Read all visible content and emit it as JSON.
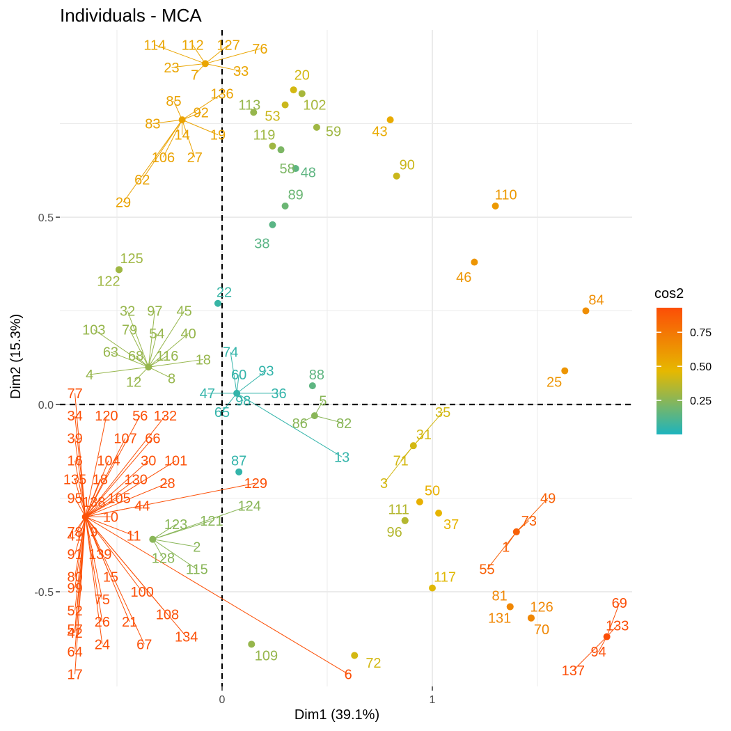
{
  "chart_data": {
    "type": "scatter",
    "title": "Individuals - MCA",
    "xlabel": "Dim1 (39.1%)",
    "ylabel": "Dim2 (15.3%)",
    "xlim": [
      -0.77,
      1.95
    ],
    "ylim": [
      -0.75,
      1.0
    ],
    "x_ticks": [
      0,
      1
    ],
    "x_tick_labels": [
      "0",
      "1"
    ],
    "y_ticks": [
      -0.5,
      0.0,
      0.5
    ],
    "y_tick_labels": [
      "-0.5",
      "0.0",
      "0.5"
    ],
    "grid": true,
    "reference_lines": {
      "x": 0,
      "y": 0,
      "style": "dashed"
    },
    "legend": {
      "title": "cos2",
      "position": "right",
      "range": [
        0.0,
        0.93
      ],
      "ticks": [
        0.25,
        0.5,
        0.75
      ],
      "tick_labels": [
        "0.25",
        "0.50",
        "0.75"
      ],
      "colors": [
        "#1DB4BE",
        "#E6B800",
        "#FC4E07"
      ]
    },
    "clusters": [
      {
        "x": -0.08,
        "y": 0.91,
        "cos2": 0.55,
        "labels": [
          {
            "t": "114",
            "lx": -0.32,
            "ly": 0.96
          },
          {
            "t": "112",
            "lx": -0.14,
            "ly": 0.96
          },
          {
            "t": "127",
            "lx": 0.03,
            "ly": 0.96
          },
          {
            "t": "76",
            "lx": 0.18,
            "ly": 0.95
          },
          {
            "t": "23",
            "lx": -0.24,
            "ly": 0.9
          },
          {
            "t": "7",
            "lx": -0.13,
            "ly": 0.88
          },
          {
            "t": "33",
            "lx": 0.09,
            "ly": 0.89
          }
        ]
      },
      {
        "x": -0.19,
        "y": 0.76,
        "cos2": 0.56,
        "labels": [
          {
            "t": "85",
            "lx": -0.23,
            "ly": 0.81
          },
          {
            "t": "136",
            "lx": 0.0,
            "ly": 0.83
          },
          {
            "t": "92",
            "lx": -0.1,
            "ly": 0.78
          },
          {
            "t": "83",
            "lx": -0.33,
            "ly": 0.75
          },
          {
            "t": "14",
            "lx": -0.19,
            "ly": 0.72
          },
          {
            "t": "19",
            "lx": -0.02,
            "ly": 0.72
          },
          {
            "t": "106",
            "lx": -0.28,
            "ly": 0.66
          },
          {
            "t": "27",
            "lx": -0.13,
            "ly": 0.66
          },
          {
            "t": "62",
            "lx": -0.38,
            "ly": 0.6
          },
          {
            "t": "29",
            "lx": -0.47,
            "ly": 0.54
          }
        ]
      },
      {
        "x": -0.35,
        "y": 0.1,
        "cos2": 0.28,
        "labels": [
          {
            "t": "32",
            "lx": -0.45,
            "ly": 0.25
          },
          {
            "t": "97",
            "lx": -0.32,
            "ly": 0.25
          },
          {
            "t": "45",
            "lx": -0.18,
            "ly": 0.25
          },
          {
            "t": "103",
            "lx": -0.61,
            "ly": 0.2
          },
          {
            "t": "79",
            "lx": -0.44,
            "ly": 0.2
          },
          {
            "t": "54",
            "lx": -0.31,
            "ly": 0.19
          },
          {
            "t": "40",
            "lx": -0.16,
            "ly": 0.19
          },
          {
            "t": "63",
            "lx": -0.53,
            "ly": 0.14
          },
          {
            "t": "68",
            "lx": -0.41,
            "ly": 0.13
          },
          {
            "t": "116",
            "lx": -0.26,
            "ly": 0.13
          },
          {
            "t": "18",
            "lx": -0.09,
            "ly": 0.12
          },
          {
            "t": "4",
            "lx": -0.63,
            "ly": 0.08
          },
          {
            "t": "12",
            "lx": -0.42,
            "ly": 0.06
          },
          {
            "t": "8",
            "lx": -0.24,
            "ly": 0.07
          }
        ]
      },
      {
        "x": 0.07,
        "y": 0.03,
        "cos2": 0.05,
        "labels": [
          {
            "t": "74",
            "lx": 0.04,
            "ly": 0.14
          },
          {
            "t": "93",
            "lx": 0.21,
            "ly": 0.09
          },
          {
            "t": "60",
            "lx": 0.08,
            "ly": 0.08
          },
          {
            "t": "47",
            "lx": -0.07,
            "ly": 0.03
          },
          {
            "t": "36",
            "lx": 0.27,
            "ly": 0.03
          },
          {
            "t": "98",
            "lx": 0.1,
            "ly": 0.01
          },
          {
            "t": "65",
            "lx": 0.0,
            "ly": -0.02
          },
          {
            "t": "13",
            "lx": 0.57,
            "ly": -0.14
          }
        ]
      },
      {
        "x": 0.44,
        "y": -0.03,
        "cos2": 0.25,
        "labels": [
          {
            "t": "5",
            "lx": 0.48,
            "ly": 0.01
          },
          {
            "t": "86",
            "lx": 0.37,
            "ly": -0.05
          },
          {
            "t": "82",
            "lx": 0.58,
            "ly": -0.05
          }
        ]
      },
      {
        "x": 0.91,
        "y": -0.11,
        "cos2": 0.42,
        "labels": [
          {
            "t": "35",
            "lx": 1.05,
            "ly": -0.02
          },
          {
            "t": "31",
            "lx": 0.96,
            "ly": -0.08
          },
          {
            "t": "71",
            "lx": 0.85,
            "ly": -0.15
          },
          {
            "t": "3",
            "lx": 0.77,
            "ly": -0.21
          }
        ]
      },
      {
        "x": -0.33,
        "y": -0.36,
        "cos2": 0.25,
        "labels": [
          {
            "t": "123",
            "lx": -0.22,
            "ly": -0.32
          },
          {
            "t": "121",
            "lx": -0.05,
            "ly": -0.31
          },
          {
            "t": "124",
            "lx": 0.13,
            "ly": -0.27
          },
          {
            "t": "2",
            "lx": -0.12,
            "ly": -0.38
          },
          {
            "t": "128",
            "lx": -0.28,
            "ly": -0.41
          },
          {
            "t": "115",
            "lx": -0.12,
            "ly": -0.44
          }
        ]
      },
      {
        "x": 1.4,
        "y": -0.34,
        "cos2": 0.85,
        "labels": [
          {
            "t": "49",
            "lx": 1.55,
            "ly": -0.25
          },
          {
            "t": "73",
            "lx": 1.46,
            "ly": -0.31
          },
          {
            "t": "1",
            "lx": 1.35,
            "ly": -0.38
          },
          {
            "t": "55",
            "lx": 1.26,
            "ly": -0.44
          }
        ]
      },
      {
        "x": 1.83,
        "y": -0.62,
        "cos2": 0.93,
        "labels": [
          {
            "t": "69",
            "lx": 1.89,
            "ly": -0.53
          },
          {
            "t": "133",
            "lx": 1.88,
            "ly": -0.59
          },
          {
            "t": "94",
            "lx": 1.79,
            "ly": -0.66
          },
          {
            "t": "137",
            "lx": 1.67,
            "ly": -0.71
          }
        ]
      },
      {
        "x": -0.65,
        "y": -0.3,
        "cos2": 0.92,
        "labels": [
          {
            "t": "77",
            "lx": -0.7,
            "ly": 0.03
          },
          {
            "t": "34",
            "lx": -0.7,
            "ly": -0.03
          },
          {
            "t": "120",
            "lx": -0.55,
            "ly": -0.03
          },
          {
            "t": "56",
            "lx": -0.39,
            "ly": -0.03
          },
          {
            "t": "132",
            "lx": -0.27,
            "ly": -0.03
          },
          {
            "t": "39",
            "lx": -0.7,
            "ly": -0.09
          },
          {
            "t": "107",
            "lx": -0.46,
            "ly": -0.09
          },
          {
            "t": "66",
            "lx": -0.33,
            "ly": -0.09
          },
          {
            "t": "16",
            "lx": -0.7,
            "ly": -0.15
          },
          {
            "t": "104",
            "lx": -0.54,
            "ly": -0.15
          },
          {
            "t": "30",
            "lx": -0.35,
            "ly": -0.15
          },
          {
            "t": "101",
            "lx": -0.22,
            "ly": -0.15
          },
          {
            "t": "135",
            "lx": -0.7,
            "ly": -0.2
          },
          {
            "t": "18",
            "lx": -0.58,
            "ly": -0.2
          },
          {
            "t": "130",
            "lx": -0.41,
            "ly": -0.2
          },
          {
            "t": "28",
            "lx": -0.26,
            "ly": -0.21
          },
          {
            "t": "95",
            "lx": -0.7,
            "ly": -0.25
          },
          {
            "t": "138",
            "lx": -0.61,
            "ly": -0.26
          },
          {
            "t": "105",
            "lx": -0.49,
            "ly": -0.25
          },
          {
            "t": "44",
            "lx": -0.38,
            "ly": -0.27
          },
          {
            "t": "10",
            "lx": -0.53,
            "ly": -0.3
          },
          {
            "t": "78",
            "lx": -0.7,
            "ly": -0.34
          },
          {
            "t": "9",
            "lx": -0.61,
            "ly": -0.34
          },
          {
            "t": "11",
            "lx": -0.42,
            "ly": -0.35
          },
          {
            "t": "41",
            "lx": -0.7,
            "ly": -0.35
          },
          {
            "t": "91",
            "lx": -0.7,
            "ly": -0.4
          },
          {
            "t": "139",
            "lx": -0.58,
            "ly": -0.4
          },
          {
            "t": "80",
            "lx": -0.7,
            "ly": -0.46
          },
          {
            "t": "15",
            "lx": -0.53,
            "ly": -0.46
          },
          {
            "t": "99",
            "lx": -0.7,
            "ly": -0.49
          },
          {
            "t": "100",
            "lx": -0.38,
            "ly": -0.5
          },
          {
            "t": "75",
            "lx": -0.57,
            "ly": -0.52
          },
          {
            "t": "52",
            "lx": -0.7,
            "ly": -0.55
          },
          {
            "t": "108",
            "lx": -0.26,
            "ly": -0.56
          },
          {
            "t": "26",
            "lx": -0.57,
            "ly": -0.58
          },
          {
            "t": "21",
            "lx": -0.44,
            "ly": -0.58
          },
          {
            "t": "57",
            "lx": -0.7,
            "ly": -0.6
          },
          {
            "t": "42",
            "lx": -0.7,
            "ly": -0.61
          },
          {
            "t": "134",
            "lx": -0.17,
            "ly": -0.62
          },
          {
            "t": "24",
            "lx": -0.57,
            "ly": -0.64
          },
          {
            "t": "67",
            "lx": -0.37,
            "ly": -0.64
          },
          {
            "t": "64",
            "lx": -0.7,
            "ly": -0.66
          },
          {
            "t": "17",
            "lx": -0.7,
            "ly": -0.72
          },
          {
            "t": "129",
            "lx": 0.16,
            "ly": -0.21
          },
          {
            "t": "6",
            "lx": 0.6,
            "ly": -0.72
          }
        ]
      }
    ],
    "points": [
      {
        "label": "20",
        "x": 0.34,
        "y": 0.84,
        "cos2": 0.42
      },
      {
        "label": "102",
        "x": 0.38,
        "y": 0.83,
        "cos2": 0.32
      },
      {
        "label": "53",
        "x": 0.3,
        "y": 0.8,
        "cos2": 0.4
      },
      {
        "label": "59",
        "x": 0.45,
        "y": 0.74,
        "cos2": 0.3
      },
      {
        "label": "113",
        "x": 0.15,
        "y": 0.78,
        "cos2": 0.28
      },
      {
        "label": "119",
        "x": 0.24,
        "y": 0.69,
        "cos2": 0.3
      },
      {
        "label": "58",
        "x": 0.28,
        "y": 0.68,
        "cos2": 0.22
      },
      {
        "label": "48",
        "x": 0.35,
        "y": 0.63,
        "cos2": 0.15
      },
      {
        "label": "43",
        "x": 0.8,
        "y": 0.76,
        "cos2": 0.52
      },
      {
        "label": "90",
        "x": 0.83,
        "y": 0.61,
        "cos2": 0.4
      },
      {
        "label": "89",
        "x": 0.3,
        "y": 0.53,
        "cos2": 0.18
      },
      {
        "label": "38",
        "x": 0.24,
        "y": 0.48,
        "cos2": 0.14
      },
      {
        "label": "110",
        "x": 1.3,
        "y": 0.53,
        "cos2": 0.6
      },
      {
        "label": "46",
        "x": 1.2,
        "y": 0.38,
        "cos2": 0.62
      },
      {
        "label": "125",
        "x": -0.49,
        "y": 0.36,
        "cos2": 0.3
      },
      {
        "label": "122",
        "x": -0.49,
        "y": 0.36,
        "cos2": 0.3
      },
      {
        "label": "22",
        "x": -0.02,
        "y": 0.27,
        "cos2": 0.06
      },
      {
        "label": "84",
        "x": 1.73,
        "y": 0.25,
        "cos2": 0.65
      },
      {
        "label": "25",
        "x": 1.63,
        "y": 0.09,
        "cos2": 0.62
      },
      {
        "label": "88",
        "x": 0.43,
        "y": 0.05,
        "cos2": 0.15
      },
      {
        "label": "87",
        "x": 0.08,
        "y": -0.18,
        "cos2": 0.05
      },
      {
        "label": "50",
        "x": 0.94,
        "y": -0.26,
        "cos2": 0.5
      },
      {
        "label": "111",
        "x": 0.87,
        "y": -0.31,
        "cos2": 0.35
      },
      {
        "label": "96",
        "x": 0.87,
        "y": -0.31,
        "cos2": 0.35
      },
      {
        "label": "37",
        "x": 1.03,
        "y": -0.29,
        "cos2": 0.48
      },
      {
        "label": "117",
        "x": 1.0,
        "y": -0.49,
        "cos2": 0.45
      },
      {
        "label": "81",
        "x": 1.37,
        "y": -0.54,
        "cos2": 0.68
      },
      {
        "label": "131",
        "x": 1.37,
        "y": -0.54,
        "cos2": 0.68
      },
      {
        "label": "126",
        "x": 1.47,
        "y": -0.57,
        "cos2": 0.68
      },
      {
        "label": "70",
        "x": 1.47,
        "y": -0.57,
        "cos2": 0.68
      },
      {
        "label": "109",
        "x": 0.14,
        "y": -0.64,
        "cos2": 0.28
      },
      {
        "label": "72",
        "x": 0.63,
        "y": -0.67,
        "cos2": 0.42
      }
    ],
    "point_label_offsets": {
      "20": [
        0.04,
        0.04
      ],
      "102": [
        0.06,
        -0.03
      ],
      "53": [
        -0.06,
        -0.03
      ],
      "59": [
        0.08,
        -0.01
      ],
      "113": [
        -0.02,
        0.02
      ],
      "119": [
        -0.04,
        0.03
      ],
      "58": [
        0.03,
        -0.05
      ],
      "48": [
        0.06,
        -0.01
      ],
      "43": [
        -0.05,
        -0.03
      ],
      "90": [
        0.05,
        0.03
      ],
      "89": [
        0.05,
        0.03
      ],
      "38": [
        -0.05,
        -0.05
      ],
      "110": [
        0.05,
        0.03
      ],
      "46": [
        -0.05,
        -0.04
      ],
      "125": [
        0.06,
        0.03
      ],
      "122": [
        -0.05,
        -0.03
      ],
      "22": [
        0.03,
        0.03
      ],
      "84": [
        0.05,
        0.03
      ],
      "25": [
        -0.05,
        -0.03
      ],
      "88": [
        0.02,
        0.03
      ],
      "87": [
        0.0,
        0.03
      ],
      "50": [
        0.06,
        0.03
      ],
      "111": [
        -0.03,
        0.03
      ],
      "96": [
        -0.05,
        -0.03
      ],
      "37": [
        0.06,
        -0.03
      ],
      "117": [
        0.06,
        0.03
      ],
      "81": [
        -0.05,
        0.03
      ],
      "131": [
        -0.05,
        -0.03
      ],
      "126": [
        0.05,
        0.03
      ],
      "70": [
        0.05,
        -0.03
      ],
      "109": [
        0.07,
        -0.03
      ],
      "72": [
        0.09,
        -0.02
      ]
    }
  }
}
